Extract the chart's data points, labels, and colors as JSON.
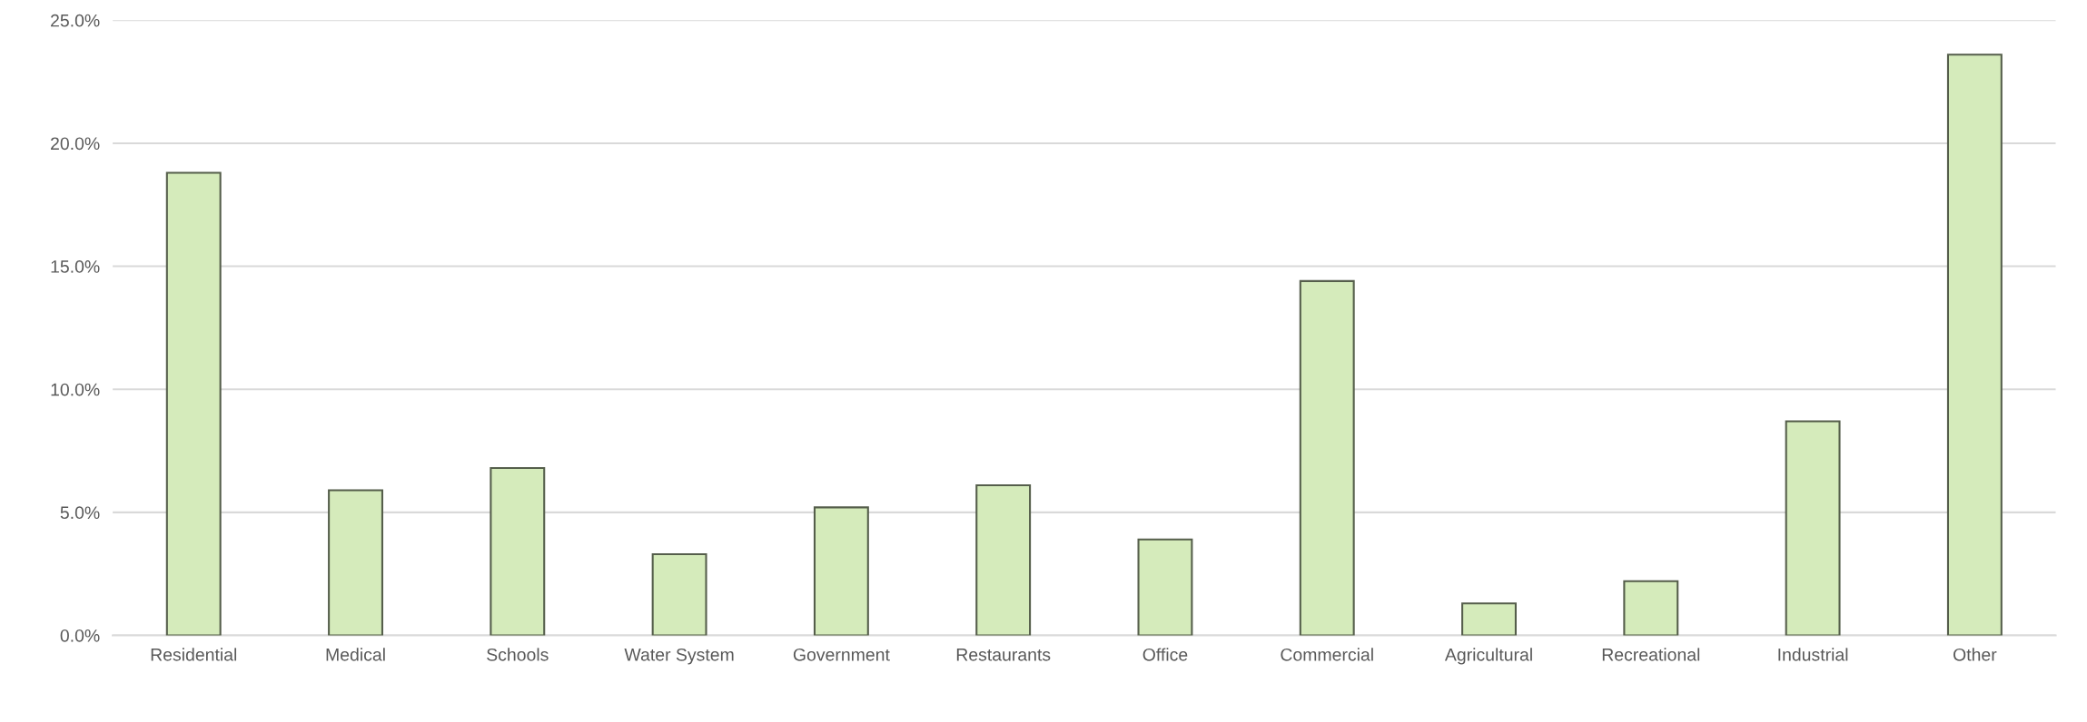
{
  "chart_data": {
    "type": "bar",
    "categories": [
      "Residential",
      "Medical",
      "Schools",
      "Water System",
      "Government",
      "Restaurants",
      "Office",
      "Commercial",
      "Agricultural",
      "Recreational",
      "Industrial",
      "Other"
    ],
    "values": [
      18.8,
      5.9,
      6.8,
      3.3,
      5.2,
      6.1,
      3.9,
      14.4,
      1.3,
      2.2,
      8.7,
      23.6
    ],
    "color": "#d5ebbb",
    "ylim": [
      0,
      25
    ],
    "yticks": [
      {
        "value": 0,
        "label": "0.0%"
      },
      {
        "value": 5,
        "label": "5.0%"
      },
      {
        "value": 10,
        "label": "10.0%"
      },
      {
        "value": 15,
        "label": "15.0%"
      },
      {
        "value": 20,
        "label": "20.0%"
      },
      {
        "value": 25,
        "label": "25.0%"
      }
    ],
    "grid": "y",
    "legend": false
  }
}
